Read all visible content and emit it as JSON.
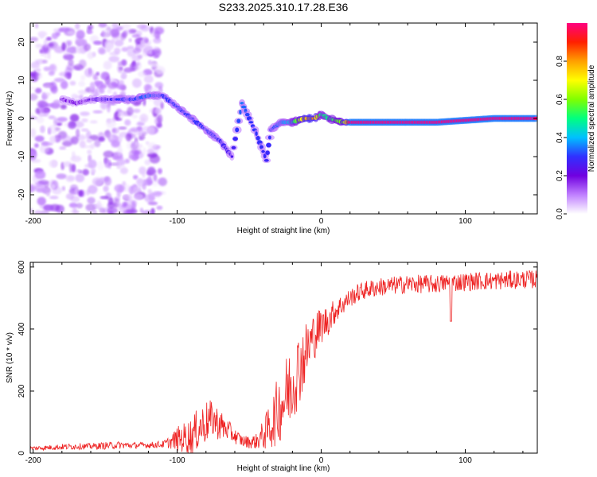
{
  "title": "S233.2025.310.17.28.E36",
  "chart_data": [
    {
      "type": "heatmap",
      "title": "",
      "xlabel": "Height of straight line (km)",
      "ylabel": "Frequency (Hz)",
      "xlim": [
        -202,
        150
      ],
      "ylim": [
        -25,
        25
      ],
      "xticks": [
        -200,
        -100,
        0,
        100
      ],
      "yticks": [
        -20,
        -10,
        0,
        10,
        20
      ],
      "xtick_labels": [
        "-200",
        "-100",
        "0",
        "100"
      ],
      "ytick_labels": [
        "-20",
        "-10",
        "0",
        "10",
        "20"
      ],
      "colorbar": {
        "label": "Normalized spectral amplitude",
        "range": [
          0,
          1
        ],
        "ticks": [
          0.0,
          0.2,
          0.4,
          0.6,
          0.8
        ],
        "tick_labels": [
          "0.0",
          "0.2",
          "0.4",
          "0.6",
          "0.8"
        ],
        "colors": [
          "#ffffff",
          "#c080ff",
          "#7000e0",
          "#3030ff",
          "#00c0ff",
          "#00ff80",
          "#80ff00",
          "#ffff00",
          "#ffa000",
          "#ff2000",
          "#ff0080"
        ]
      },
      "noise_region": {
        "x_range": [
          -202,
          -110
        ],
        "y_range": [
          -25,
          25
        ],
        "amplitude": 0.15
      },
      "ridge": [
        {
          "x": -180,
          "y": 5,
          "amp": 0.2
        },
        {
          "x": -170,
          "y": 4,
          "amp": 0.18
        },
        {
          "x": -160,
          "y": 5,
          "amp": 0.22
        },
        {
          "x": -150,
          "y": 5,
          "amp": 0.25
        },
        {
          "x": -140,
          "y": 5,
          "amp": 0.3
        },
        {
          "x": -130,
          "y": 5,
          "amp": 0.3
        },
        {
          "x": -120,
          "y": 6,
          "amp": 0.35
        },
        {
          "x": -110,
          "y": 6,
          "amp": 0.3
        },
        {
          "x": -100,
          "y": 3,
          "amp": 0.3
        },
        {
          "x": -90,
          "y": 0,
          "amp": 0.3
        },
        {
          "x": -80,
          "y": -3,
          "amp": 0.3
        },
        {
          "x": -70,
          "y": -6,
          "amp": 0.28
        },
        {
          "x": -62,
          "y": -10,
          "amp": 0.25
        },
        {
          "x": -55,
          "y": 4,
          "amp": 0.35
        },
        {
          "x": -50,
          "y": 0,
          "amp": 0.3
        },
        {
          "x": -45,
          "y": -4,
          "amp": 0.3
        },
        {
          "x": -38,
          "y": -11,
          "amp": 0.28
        },
        {
          "x": -35,
          "y": -3,
          "amp": 0.3
        },
        {
          "x": -28,
          "y": -1,
          "amp": 0.35
        },
        {
          "x": -20,
          "y": -1,
          "amp": 0.45
        },
        {
          "x": -12,
          "y": 0,
          "amp": 0.75
        },
        {
          "x": -5,
          "y": 0,
          "amp": 0.8
        },
        {
          "x": 0,
          "y": 1,
          "amp": 0.5
        },
        {
          "x": 5,
          "y": 0,
          "amp": 0.5
        },
        {
          "x": 15,
          "y": -1,
          "amp": 0.6
        },
        {
          "x": 20,
          "y": -1,
          "amp": 1.0
        },
        {
          "x": 40,
          "y": -1,
          "amp": 1.0
        },
        {
          "x": 60,
          "y": -1,
          "amp": 1.0
        },
        {
          "x": 80,
          "y": -1,
          "amp": 1.0
        },
        {
          "x": 100,
          "y": -0.5,
          "amp": 1.0
        },
        {
          "x": 120,
          "y": 0,
          "amp": 1.0
        },
        {
          "x": 150,
          "y": 0,
          "amp": 1.0
        }
      ]
    },
    {
      "type": "line",
      "title": "",
      "xlabel": "Height of straight line (km)",
      "ylabel": "SNR (10 * v/v)",
      "xlim": [
        -202,
        150
      ],
      "ylim": [
        0,
        615
      ],
      "xticks": [
        -200,
        -100,
        0,
        100
      ],
      "yticks": [
        0,
        200,
        400,
        600
      ],
      "xtick_labels": [
        "-200",
        "-100",
        "0",
        "100"
      ],
      "ytick_labels": [
        "0",
        "200",
        "400",
        "600"
      ],
      "series": [
        {
          "name": "SNR",
          "color": "#ee2222",
          "x": [
            -202,
            -190,
            -180,
            -170,
            -160,
            -150,
            -140,
            -130,
            -120,
            -110,
            -105,
            -100,
            -95,
            -90,
            -85,
            -80,
            -75,
            -70,
            -65,
            -60,
            -55,
            -50,
            -45,
            -40,
            -35,
            -30,
            -25,
            -20,
            -15,
            -10,
            -5,
            0,
            5,
            10,
            15,
            20,
            25,
            30,
            35,
            40,
            50,
            60,
            70,
            80,
            90,
            100,
            110,
            120,
            130,
            140,
            150
          ],
          "y": [
            15,
            18,
            20,
            22,
            22,
            24,
            26,
            25,
            26,
            28,
            35,
            45,
            50,
            55,
            80,
            100,
            110,
            90,
            75,
            55,
            40,
            35,
            38,
            60,
            90,
            140,
            180,
            230,
            280,
            330,
            380,
            410,
            430,
            460,
            480,
            500,
            515,
            525,
            530,
            535,
            540,
            545,
            545,
            545,
            550,
            552,
            555,
            555,
            558,
            560,
            560
          ],
          "noise_amp": [
            8,
            8,
            10,
            10,
            10,
            12,
            12,
            10,
            10,
            12,
            20,
            40,
            50,
            60,
            70,
            70,
            60,
            50,
            35,
            25,
            20,
            20,
            25,
            50,
            80,
            110,
            130,
            130,
            120,
            100,
            80,
            60,
            50,
            40,
            35,
            30,
            30,
            30,
            30,
            30,
            30,
            30,
            30,
            30,
            30,
            30,
            30,
            30,
            30,
            30,
            30
          ]
        }
      ]
    }
  ]
}
